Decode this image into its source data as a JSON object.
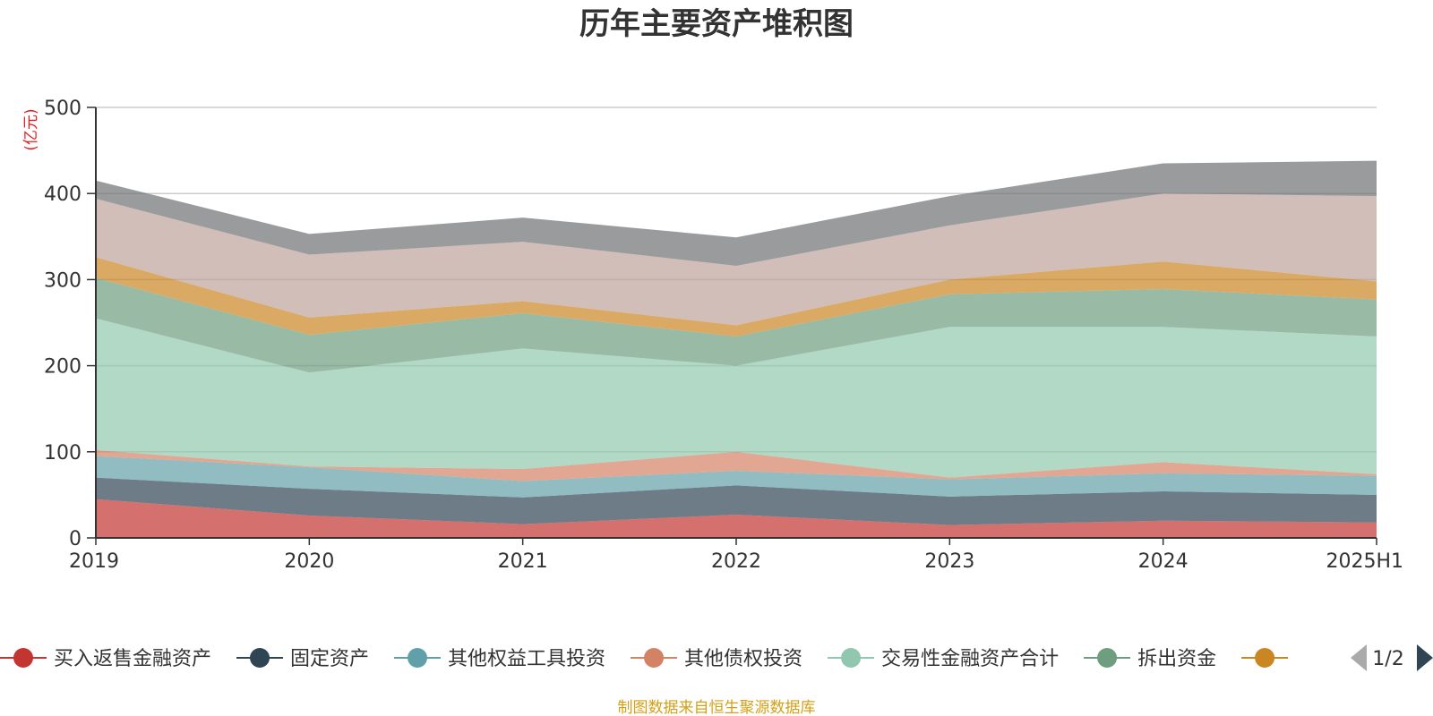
{
  "chart_data": {
    "type": "area",
    "stacked": true,
    "title": "历年主要资产堆积图",
    "unit_label": "(亿元)",
    "x": [
      "2019",
      "2020",
      "2021",
      "2022",
      "2023",
      "2024",
      "2025H1"
    ],
    "ylim": [
      0,
      500
    ],
    "yticks": [
      0,
      100,
      200,
      300,
      400,
      500
    ],
    "grid": true,
    "legend_position": "bottom",
    "series": [
      {
        "name": "买入返售金融资产",
        "color": "#c23531",
        "values": [
          45,
          26,
          16,
          27,
          15,
          20,
          18
        ]
      },
      {
        "name": "固定资产",
        "color": "#2f4554",
        "values": [
          25,
          31,
          31,
          34,
          33,
          34,
          32
        ]
      },
      {
        "name": "其他权益工具投资",
        "color": "#61a0a8",
        "values": [
          25,
          25,
          19,
          17,
          20,
          21,
          22
        ]
      },
      {
        "name": "其他债权投资",
        "color": "#d48265",
        "values": [
          7,
          1,
          14,
          22,
          2,
          13,
          2
        ]
      },
      {
        "name": "交易性金融资产合计",
        "color": "#91c7ae",
        "values": [
          153,
          109,
          140,
          100,
          175,
          157,
          160
        ]
      },
      {
        "name": "拆出资金",
        "color": "#6e9e7f",
        "values": [
          47,
          44,
          41,
          34,
          38,
          44,
          43
        ]
      },
      {
        "name": "",
        "color": "#ca8622",
        "values": [
          24,
          20,
          14,
          13,
          17,
          32,
          21
        ]
      },
      {
        "name": "",
        "color": "#bda29a",
        "values": [
          68,
          73,
          69,
          69,
          63,
          79,
          99
        ]
      },
      {
        "name": "",
        "color": "#6e7074",
        "values": [
          21,
          24,
          28,
          33,
          34,
          35,
          41
        ]
      }
    ]
  },
  "legend": {
    "page": "1/2",
    "visible_count": 7
  },
  "source": "制图数据来自恒生聚源数据库"
}
